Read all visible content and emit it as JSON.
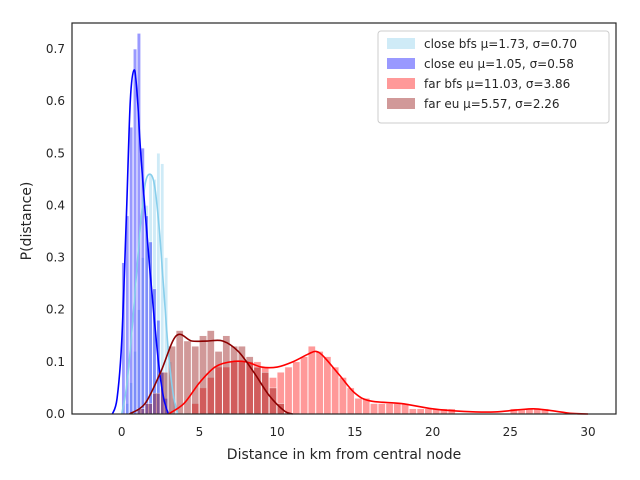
{
  "chart_data": {
    "type": "histogram-kde",
    "title": "",
    "xlabel": "Distance in km from central node",
    "ylabel": "P(distance)",
    "xlim": [
      -3.2,
      31.8
    ],
    "ylim": [
      0,
      0.75
    ],
    "xticks": [
      0,
      5,
      10,
      15,
      20,
      25,
      30
    ],
    "yticks": [
      0.0,
      0.1,
      0.2,
      0.3,
      0.4,
      0.5,
      0.6,
      0.7
    ],
    "grid": false,
    "legend_position": "upper right",
    "series": [
      {
        "name": "close bfs μ=1.73, σ=0.70",
        "bar_color": "#87ceeb",
        "bar_opacity": 0.4,
        "line_color": "#87ceeb",
        "bin_width": 0.25,
        "bins": [
          [
            0.0,
            0.0
          ],
          [
            0.25,
            0.02
          ],
          [
            0.5,
            0.06
          ],
          [
            0.75,
            0.12
          ],
          [
            1.0,
            0.2
          ],
          [
            1.25,
            0.3
          ],
          [
            1.5,
            0.4
          ],
          [
            1.75,
            0.46
          ],
          [
            2.0,
            0.45
          ],
          [
            2.25,
            0.5
          ],
          [
            2.5,
            0.48
          ],
          [
            2.75,
            0.3
          ],
          [
            3.0,
            0.1
          ],
          [
            3.25,
            0.03
          ]
        ],
        "kde": [
          [
            0,
            0.0
          ],
          [
            0.3,
            0.05
          ],
          [
            0.6,
            0.14
          ],
          [
            0.9,
            0.25
          ],
          [
            1.2,
            0.36
          ],
          [
            1.5,
            0.44
          ],
          [
            1.8,
            0.46
          ],
          [
            2.1,
            0.44
          ],
          [
            2.4,
            0.36
          ],
          [
            2.7,
            0.24
          ],
          [
            3.0,
            0.12
          ],
          [
            3.3,
            0.04
          ],
          [
            3.6,
            0.0
          ]
        ]
      },
      {
        "name": "close eu μ=1.05, σ=0.58",
        "bar_color": "#0000ff",
        "bar_opacity": 0.4,
        "line_color": "#0000ff",
        "bin_width": 0.25,
        "bins": [
          [
            0.0,
            0.29
          ],
          [
            0.25,
            0.38
          ],
          [
            0.5,
            0.55
          ],
          [
            0.75,
            0.7
          ],
          [
            1.0,
            0.73
          ],
          [
            1.25,
            0.51
          ],
          [
            1.5,
            0.38
          ],
          [
            1.75,
            0.33
          ],
          [
            2.0,
            0.24
          ],
          [
            2.25,
            0.18
          ],
          [
            2.5,
            0.08
          ],
          [
            2.75,
            0.03
          ]
        ],
        "kde": [
          [
            -0.6,
            0.0
          ],
          [
            -0.3,
            0.03
          ],
          [
            0.0,
            0.14
          ],
          [
            0.3,
            0.38
          ],
          [
            0.55,
            0.6
          ],
          [
            0.8,
            0.66
          ],
          [
            1.0,
            0.61
          ],
          [
            1.2,
            0.51
          ],
          [
            1.5,
            0.39
          ],
          [
            1.8,
            0.28
          ],
          [
            2.1,
            0.18
          ],
          [
            2.4,
            0.09
          ],
          [
            2.7,
            0.03
          ],
          [
            3.0,
            0.0
          ]
        ]
      },
      {
        "name": "far bfs μ=11.03, σ=3.86",
        "bar_color": "#ff0000",
        "bar_opacity": 0.4,
        "line_color": "#ff0000",
        "bin_width": 0.5,
        "bins": [
          [
            4.5,
            0.02
          ],
          [
            5.0,
            0.05
          ],
          [
            5.5,
            0.07
          ],
          [
            6.0,
            0.09
          ],
          [
            6.5,
            0.09
          ],
          [
            7.0,
            0.1
          ],
          [
            7.5,
            0.1
          ],
          [
            8.0,
            0.1
          ],
          [
            8.5,
            0.1
          ],
          [
            9.0,
            0.09
          ],
          [
            9.5,
            0.07
          ],
          [
            10.0,
            0.08
          ],
          [
            10.5,
            0.09
          ],
          [
            11.0,
            0.1
          ],
          [
            11.5,
            0.11
          ],
          [
            12.0,
            0.13
          ],
          [
            12.5,
            0.12
          ],
          [
            13.0,
            0.11
          ],
          [
            13.5,
            0.09
          ],
          [
            14.0,
            0.07
          ],
          [
            14.5,
            0.05
          ],
          [
            15.0,
            0.03
          ],
          [
            15.5,
            0.03
          ],
          [
            16.0,
            0.02
          ],
          [
            16.5,
            0.02
          ],
          [
            17.0,
            0.02
          ],
          [
            17.5,
            0.02
          ],
          [
            18.0,
            0.02
          ],
          [
            18.5,
            0.01
          ],
          [
            19.0,
            0.01
          ],
          [
            19.5,
            0.01
          ],
          [
            20.0,
            0.01
          ],
          [
            20.5,
            0.01
          ],
          [
            21.0,
            0.01
          ],
          [
            25.0,
            0.01
          ],
          [
            25.5,
            0.01
          ],
          [
            26.0,
            0.01
          ],
          [
            26.5,
            0.01
          ],
          [
            27.0,
            0.01
          ]
        ],
        "kde": [
          [
            3.0,
            0.0
          ],
          [
            4.0,
            0.02
          ],
          [
            5.0,
            0.06
          ],
          [
            6.0,
            0.09
          ],
          [
            7.0,
            0.1
          ],
          [
            8.0,
            0.1
          ],
          [
            9.0,
            0.09
          ],
          [
            10.0,
            0.09
          ],
          [
            11.0,
            0.1
          ],
          [
            12.0,
            0.115
          ],
          [
            12.5,
            0.12
          ],
          [
            13.0,
            0.11
          ],
          [
            14.0,
            0.075
          ],
          [
            15.0,
            0.04
          ],
          [
            16.0,
            0.025
          ],
          [
            18.0,
            0.02
          ],
          [
            20.0,
            0.01
          ],
          [
            22.0,
            0.005
          ],
          [
            24.0,
            0.004
          ],
          [
            25.5,
            0.008
          ],
          [
            26.5,
            0.01
          ],
          [
            27.5,
            0.007
          ],
          [
            29.0,
            0.001
          ],
          [
            30.0,
            0.0
          ]
        ]
      },
      {
        "name": "far eu μ=5.57, σ=2.26",
        "bar_color": "#8b0000",
        "bar_opacity": 0.4,
        "line_color": "#8b0000",
        "bin_width": 0.5,
        "bins": [
          [
            1.0,
            0.01
          ],
          [
            1.5,
            0.02
          ],
          [
            2.0,
            0.04
          ],
          [
            2.5,
            0.08
          ],
          [
            3.0,
            0.13
          ],
          [
            3.5,
            0.16
          ],
          [
            4.0,
            0.14
          ],
          [
            4.5,
            0.13
          ],
          [
            5.0,
            0.15
          ],
          [
            5.5,
            0.16
          ],
          [
            6.0,
            0.12
          ],
          [
            6.5,
            0.15
          ],
          [
            7.0,
            0.13
          ],
          [
            7.5,
            0.13
          ],
          [
            8.0,
            0.11
          ],
          [
            8.5,
            0.09
          ],
          [
            9.0,
            0.08
          ],
          [
            9.5,
            0.05
          ],
          [
            10.0,
            0.02
          ]
        ],
        "kde": [
          [
            0.5,
            0.0
          ],
          [
            1.5,
            0.02
          ],
          [
            2.5,
            0.08
          ],
          [
            3.5,
            0.15
          ],
          [
            4.5,
            0.14
          ],
          [
            5.5,
            0.14
          ],
          [
            6.5,
            0.14
          ],
          [
            7.5,
            0.12
          ],
          [
            8.5,
            0.08
          ],
          [
            9.5,
            0.035
          ],
          [
            10.5,
            0.005
          ],
          [
            11.0,
            0.0
          ]
        ]
      }
    ]
  }
}
